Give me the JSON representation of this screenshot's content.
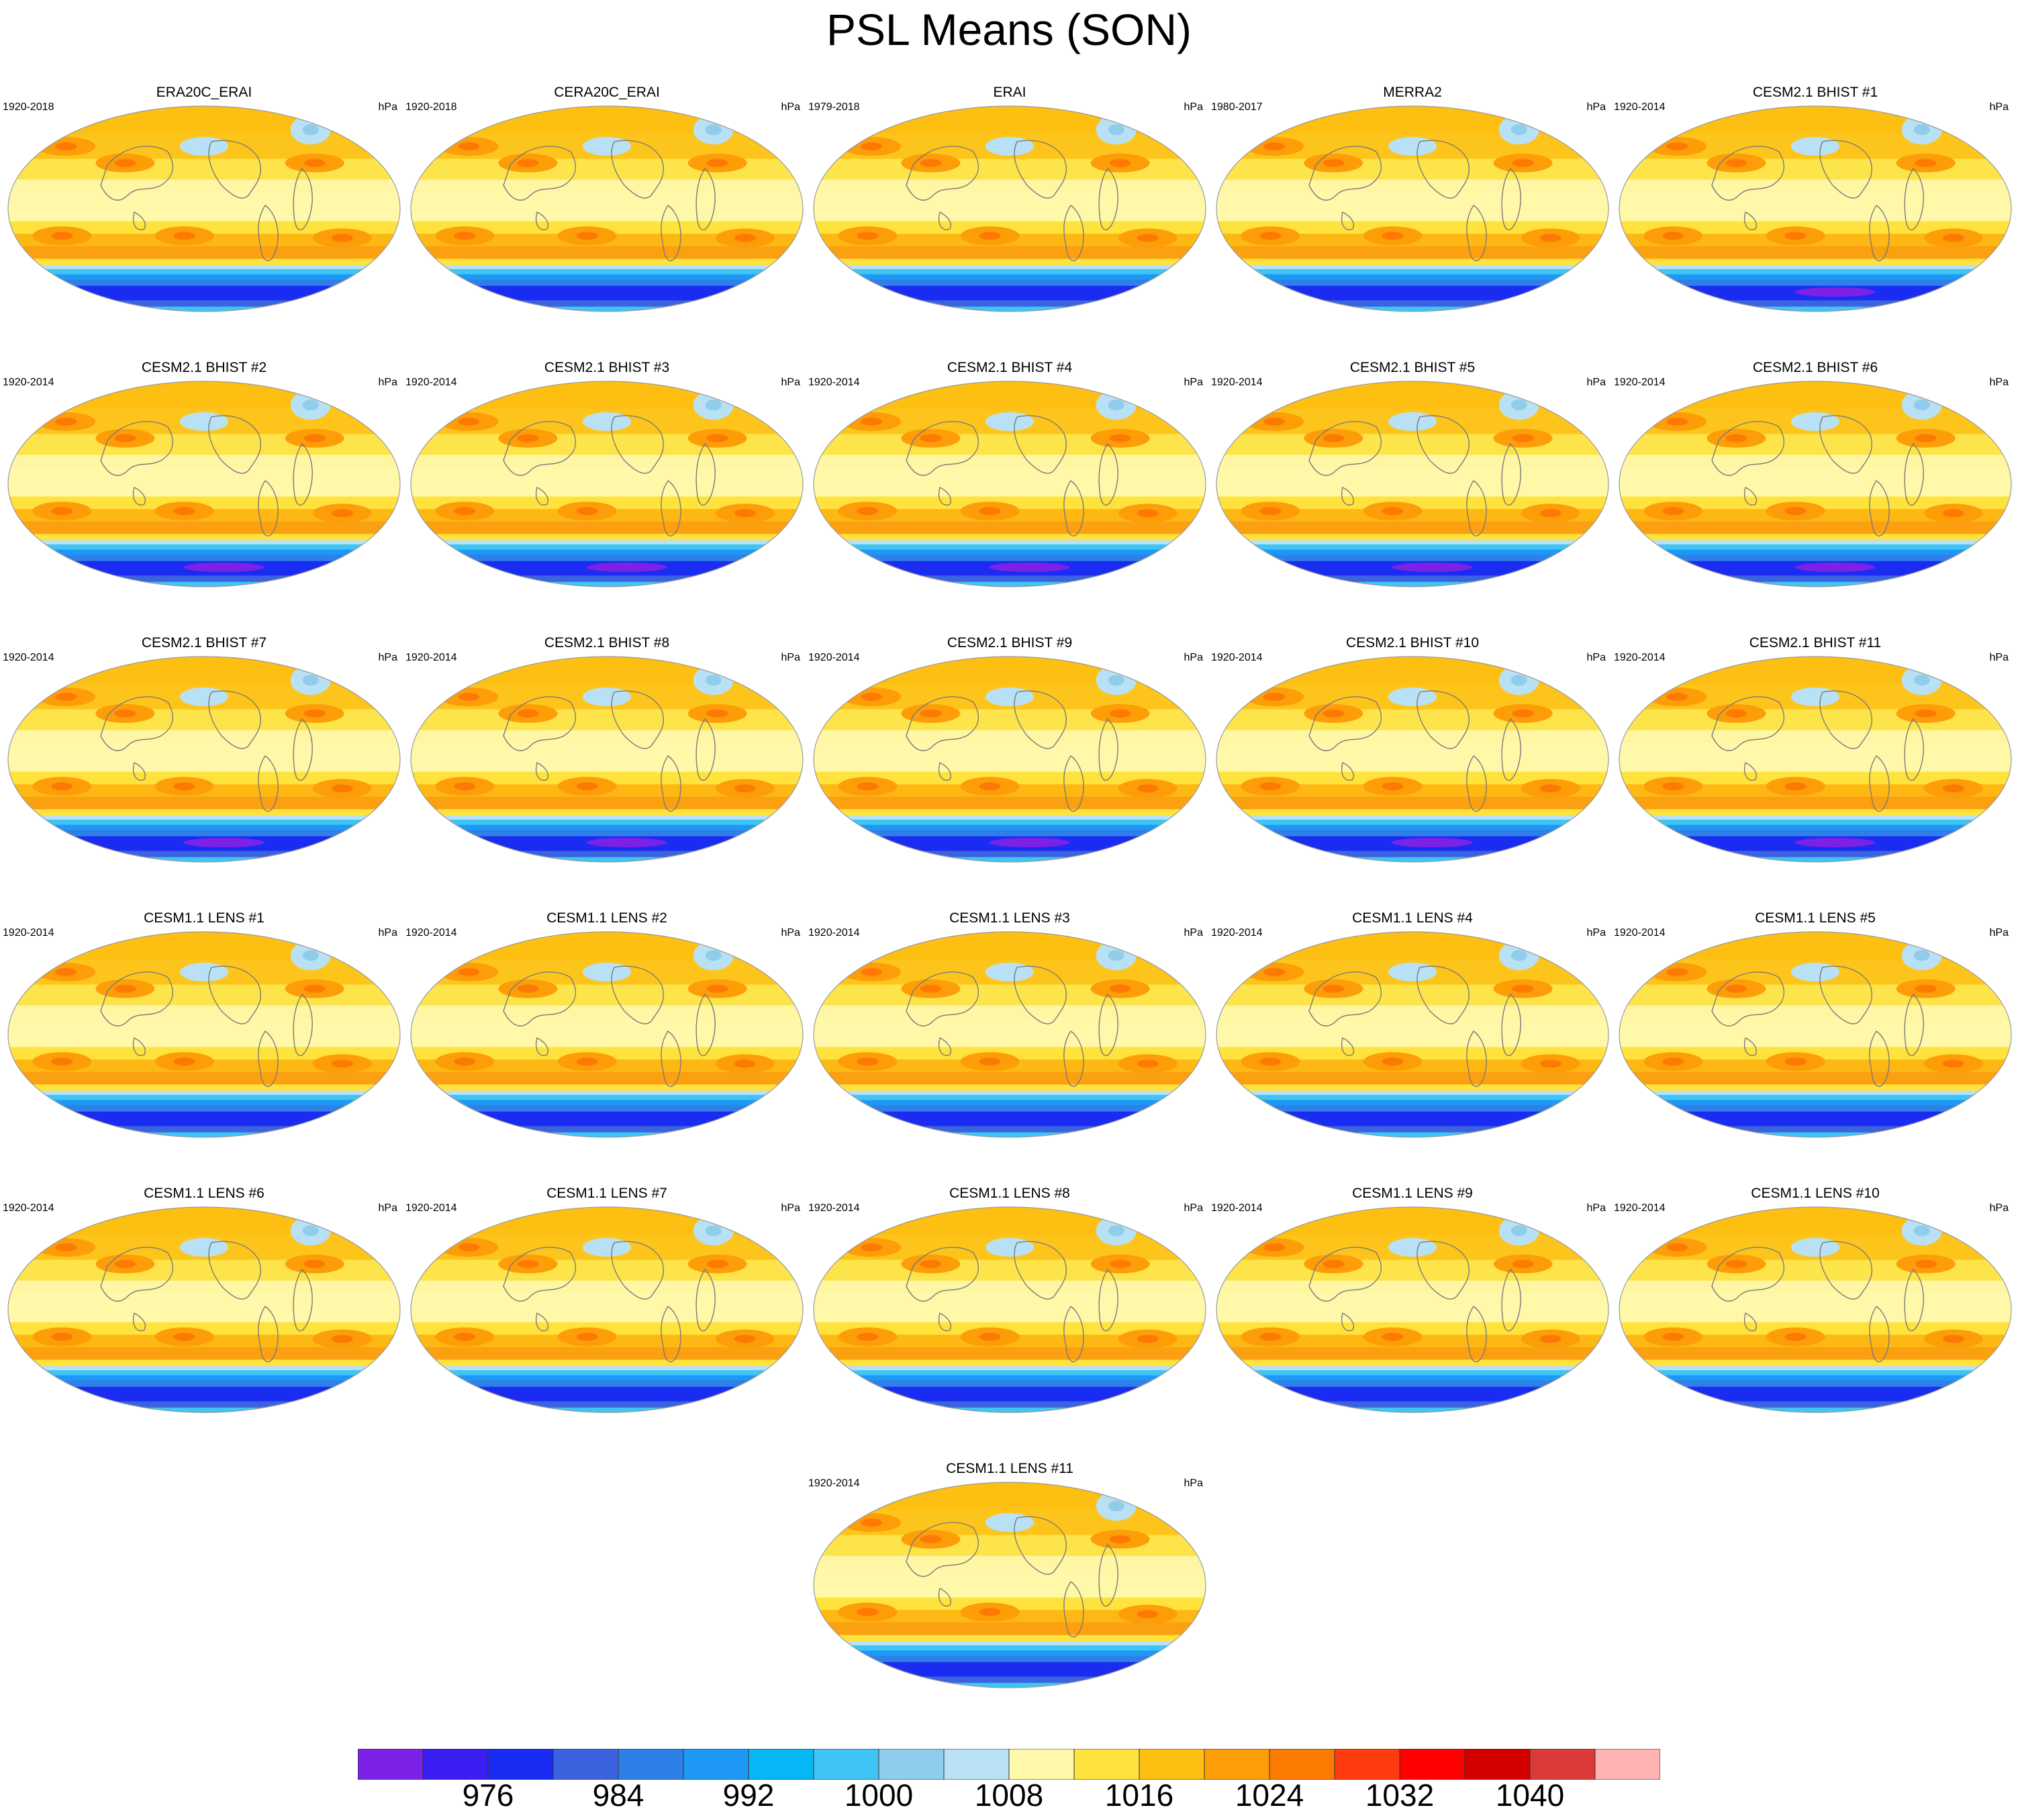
{
  "chart_data": {
    "type": "map",
    "title": "PSL Means (SON)",
    "units": "hPa",
    "panels": [
      {
        "name": "ERA20C_ERAI",
        "years": "1920-2018",
        "variant": "obs"
      },
      {
        "name": "CERA20C_ERAI",
        "years": "1920-2018",
        "variant": "obs"
      },
      {
        "name": "ERAI",
        "years": "1979-2018",
        "variant": "obs"
      },
      {
        "name": "MERRA2",
        "years": "1980-2017",
        "variant": "obs"
      },
      {
        "name": "CESM2.1 BHIST #1",
        "years": "1920-2014",
        "variant": "cesm2"
      },
      {
        "name": "CESM2.1 BHIST #2",
        "years": "1920-2014",
        "variant": "cesm2"
      },
      {
        "name": "CESM2.1 BHIST #3",
        "years": "1920-2014",
        "variant": "cesm2"
      },
      {
        "name": "CESM2.1 BHIST #4",
        "years": "1920-2014",
        "variant": "cesm2"
      },
      {
        "name": "CESM2.1 BHIST #5",
        "years": "1920-2014",
        "variant": "cesm2"
      },
      {
        "name": "CESM2.1 BHIST #6",
        "years": "1920-2014",
        "variant": "cesm2"
      },
      {
        "name": "CESM2.1 BHIST #7",
        "years": "1920-2014",
        "variant": "cesm2"
      },
      {
        "name": "CESM2.1 BHIST #8",
        "years": "1920-2014",
        "variant": "cesm2"
      },
      {
        "name": "CESM2.1 BHIST #9",
        "years": "1920-2014",
        "variant": "cesm2"
      },
      {
        "name": "CESM2.1 BHIST #10",
        "years": "1920-2014",
        "variant": "cesm2"
      },
      {
        "name": "CESM2.1 BHIST #11",
        "years": "1920-2014",
        "variant": "cesm2"
      },
      {
        "name": "CESM1.1 LENS #1",
        "years": "1920-2014",
        "variant": "cesm1"
      },
      {
        "name": "CESM1.1 LENS #2",
        "years": "1920-2014",
        "variant": "cesm1"
      },
      {
        "name": "CESM1.1 LENS #3",
        "years": "1920-2014",
        "variant": "cesm1"
      },
      {
        "name": "CESM1.1 LENS #4",
        "years": "1920-2014",
        "variant": "cesm1"
      },
      {
        "name": "CESM1.1 LENS #5",
        "years": "1920-2014",
        "variant": "cesm1"
      },
      {
        "name": "CESM1.1 LENS #6",
        "years": "1920-2014",
        "variant": "cesm1"
      },
      {
        "name": "CESM1.1 LENS #7",
        "years": "1920-2014",
        "variant": "cesm1"
      },
      {
        "name": "CESM1.1 LENS #8",
        "years": "1920-2014",
        "variant": "cesm1"
      },
      {
        "name": "CESM1.1 LENS #9",
        "years": "1920-2014",
        "variant": "cesm1"
      },
      {
        "name": "CESM1.1 LENS #10",
        "years": "1920-2014",
        "variant": "cesm1"
      },
      {
        "name": "CESM1.1 LENS #11",
        "years": "1920-2014",
        "variant": "cesm1"
      }
    ],
    "colorbar": {
      "colors": [
        "#7c22e6",
        "#3a1ef2",
        "#1a2cf2",
        "#3b63e0",
        "#2f7fe8",
        "#1e98f5",
        "#05b7f5",
        "#3ec4f5",
        "#8fcdeb",
        "#b9e1f5",
        "#fff8a8",
        "#ffe23c",
        "#fdbf12",
        "#fd9d08",
        "#fd7a02",
        "#fe3c10",
        "#fe0000",
        "#d40000",
        "#dc3a3a",
        "#ffb3b3"
      ],
      "tick_labels": [
        "976",
        "984",
        "992",
        "1000",
        "1008",
        "1016",
        "1024",
        "1032",
        "1040"
      ],
      "tick_boundaries": [
        2,
        4,
        6,
        8,
        10,
        12,
        14,
        16,
        18
      ]
    }
  }
}
